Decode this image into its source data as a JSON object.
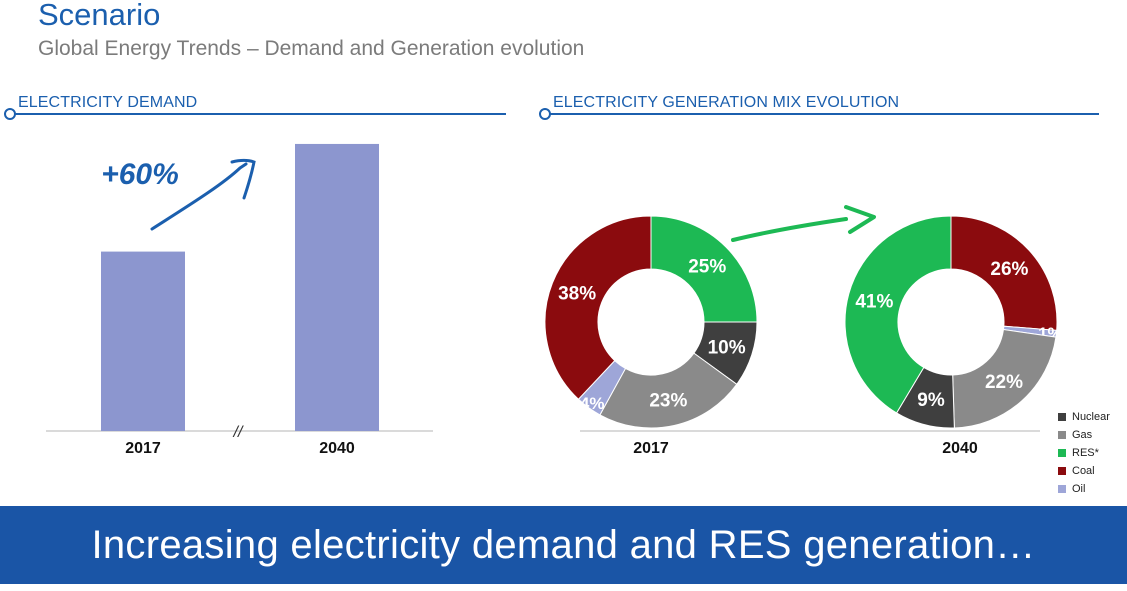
{
  "header": {
    "title": "Scenario",
    "subtitle": "Global Energy Trends – Demand and Generation evolution"
  },
  "sections": {
    "demand_title": "ELECTRICITY DEMAND",
    "mix_title": "ELECTRICITY GENERATION MIX EVOLUTION"
  },
  "banner": {
    "text": "Increasing electricity demand and RES generation…"
  },
  "colors": {
    "accent": "#1b5fae",
    "bar": "#8c96cf",
    "nuclear": "#3f3f3f",
    "gas": "#8a8a8a",
    "res": "#1db954",
    "coal": "#8b0b0e",
    "oil": "#9ea6d8",
    "banner": "#1a55a6"
  },
  "chart_data": [
    {
      "type": "bar",
      "title": "ELECTRICITY DEMAND",
      "categories": [
        "2017",
        "2040"
      ],
      "values": [
        100,
        160
      ],
      "ylim": [
        0,
        170
      ],
      "annotation": "+60%",
      "axis_break": "//"
    },
    {
      "type": "pie",
      "style": "donut",
      "title": "ELECTRICITY GENERATION MIX EVOLUTION",
      "legend": [
        "Nuclear",
        "Gas",
        "RES*",
        "Coal",
        "Oil"
      ],
      "legend_position": "bottom-right",
      "series": [
        {
          "name": "2017",
          "slices": [
            {
              "label": "RES*",
              "value": 25,
              "text": "25%"
            },
            {
              "label": "Nuclear",
              "value": 10,
              "text": "10%"
            },
            {
              "label": "Gas",
              "value": 23,
              "text": "23%"
            },
            {
              "label": "Oil",
              "value": 4,
              "text": "4%"
            },
            {
              "label": "Coal",
              "value": 38,
              "text": "38%"
            }
          ]
        },
        {
          "name": "2040",
          "slices": [
            {
              "label": "Coal",
              "value": 26,
              "text": "26%"
            },
            {
              "label": "Oil",
              "value": 1,
              "text": "1%"
            },
            {
              "label": "Gas",
              "value": 22,
              "text": "22%"
            },
            {
              "label": "Nuclear",
              "value": 9,
              "text": "9%"
            },
            {
              "label": "RES*",
              "value": 41,
              "text": "41%"
            }
          ]
        }
      ]
    }
  ]
}
